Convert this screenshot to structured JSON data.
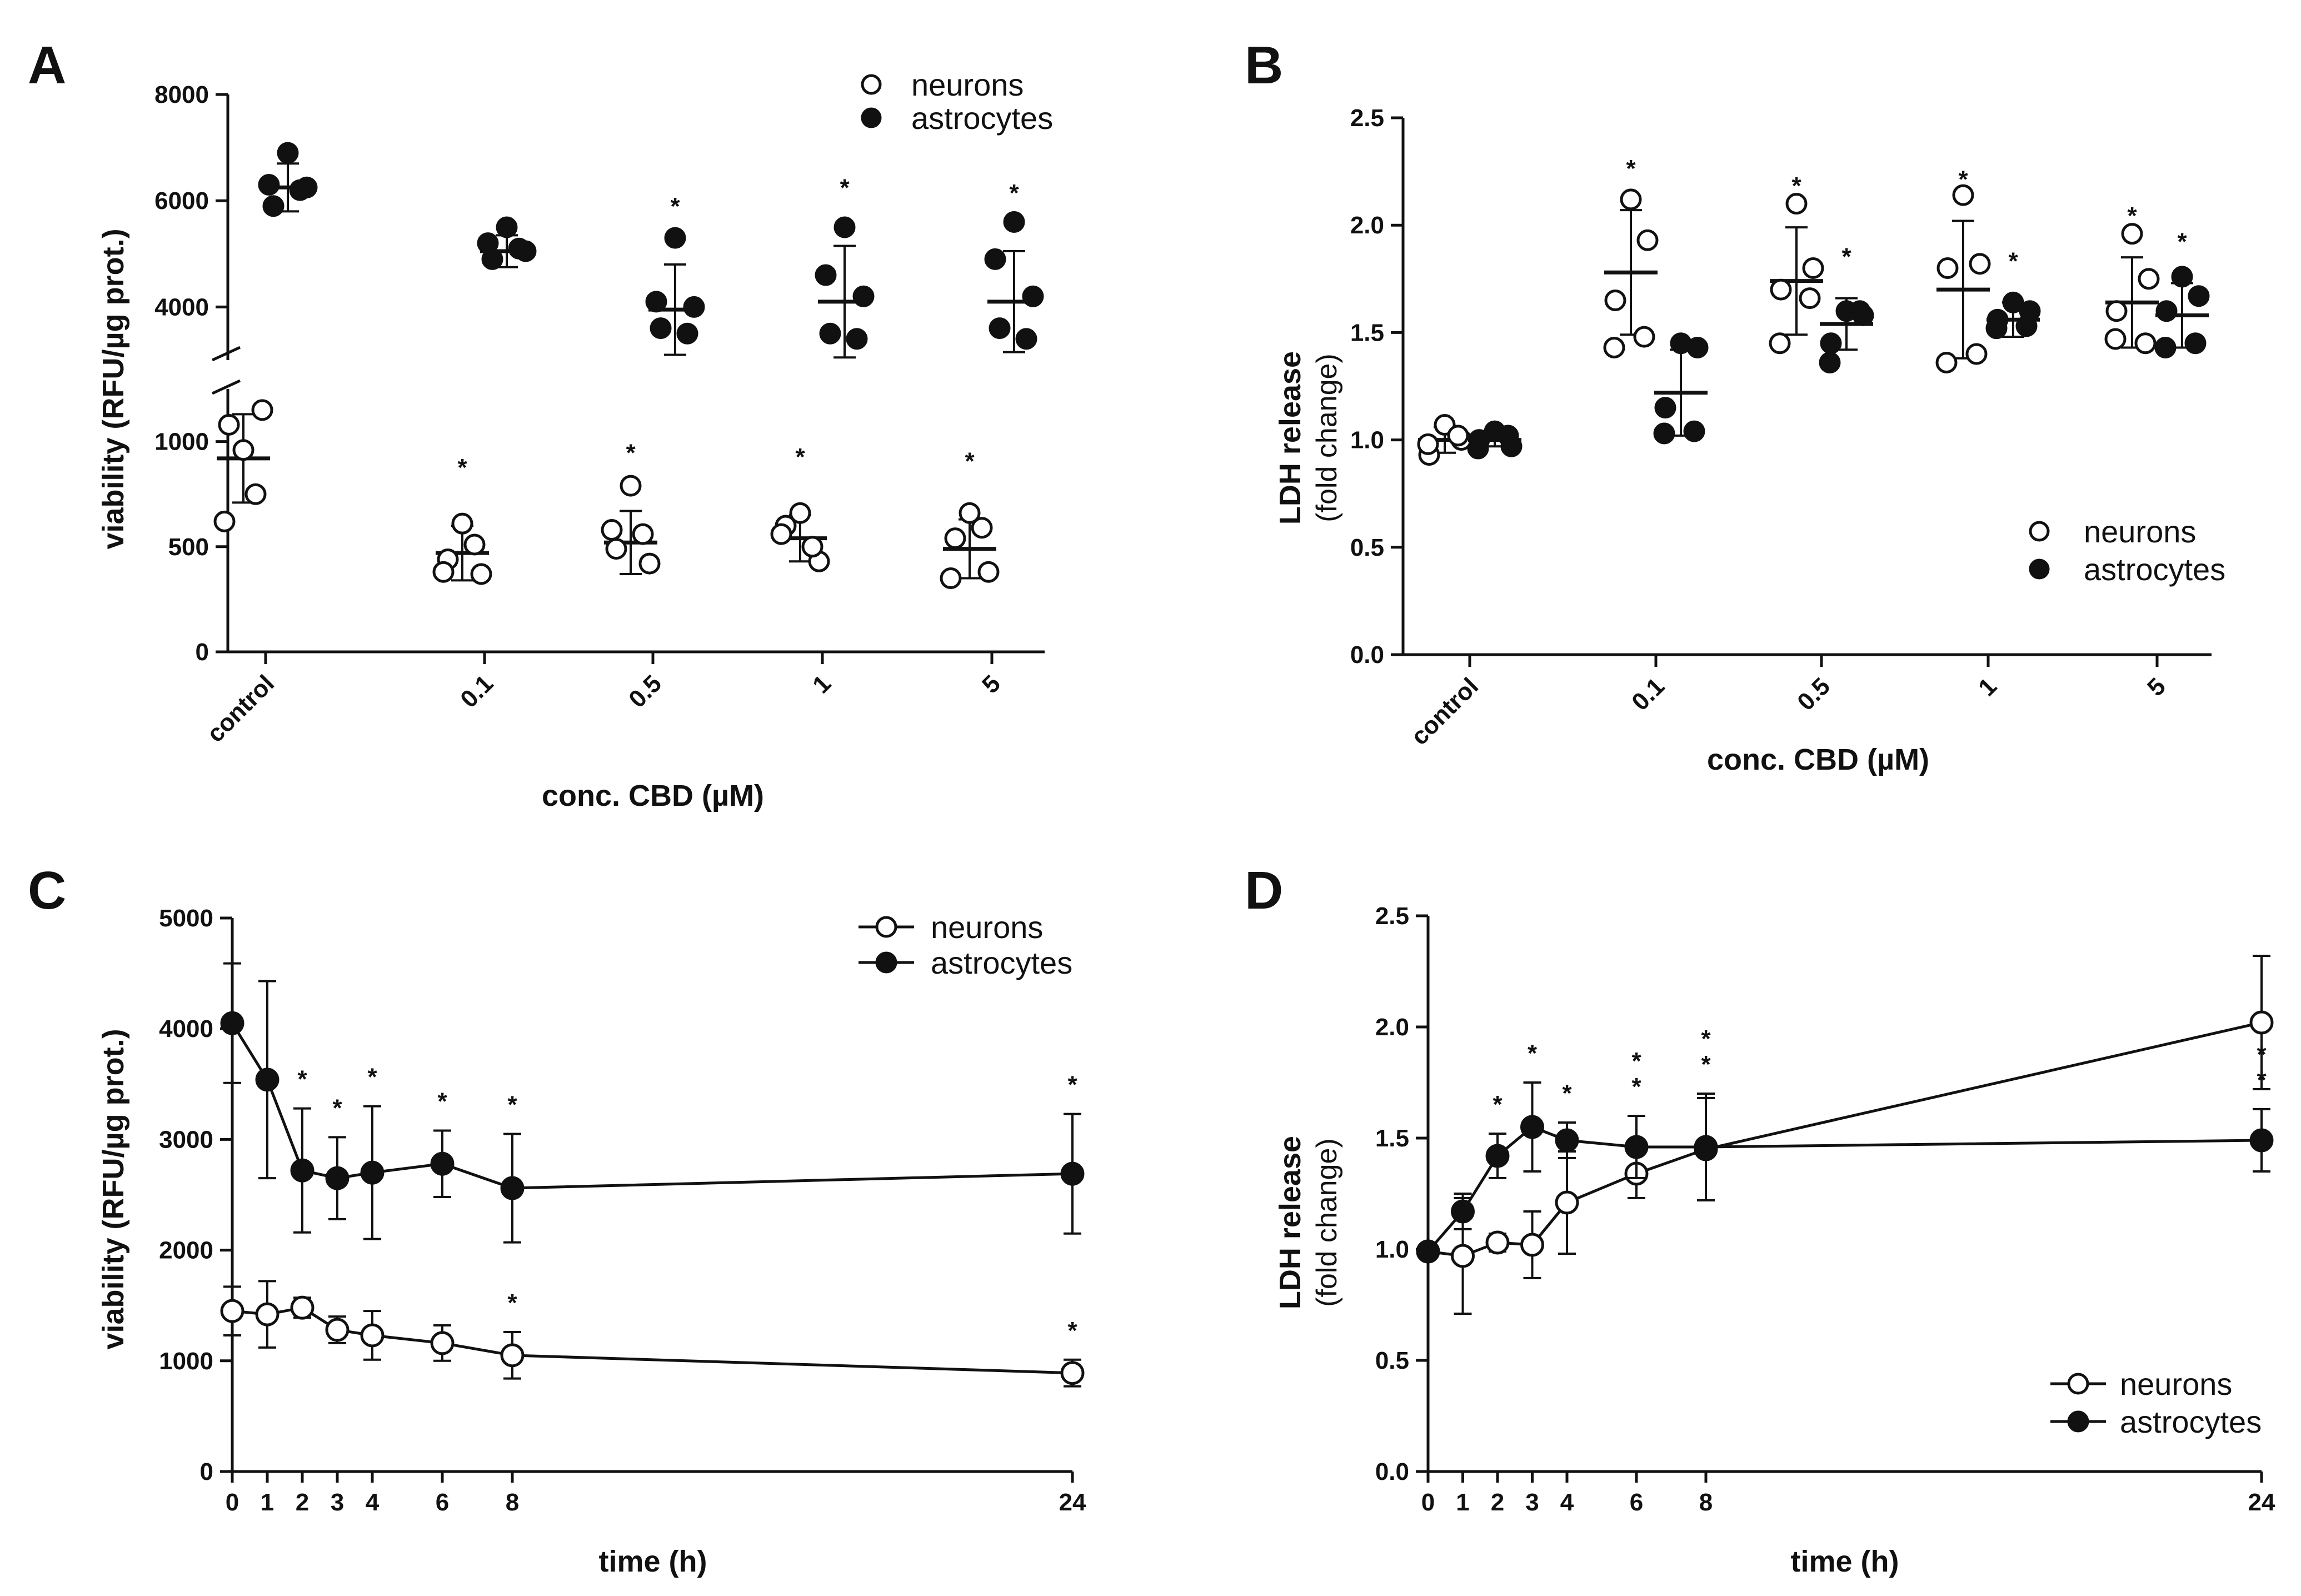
{
  "figure": {
    "background": "#ffffff",
    "ink": "#111111",
    "marker_open_fill": "#ffffff",
    "marker_closed_fill": "#111111"
  },
  "chart_data": [
    {
      "id": "A",
      "type": "scatter",
      "panel_label": "A",
      "ylabel": "viability (RFU/µg prot.)",
      "xlabel": "conc. CBD (µM)",
      "categories": [
        "control",
        "0.1",
        "0.5",
        "1",
        "5"
      ],
      "yticks_lower": [
        "0",
        "500",
        "1000"
      ],
      "yticks_upper": [
        "4000",
        "6000",
        "8000"
      ],
      "ylim_lower": [
        0,
        1250
      ],
      "ylim_upper": [
        3000,
        8000
      ],
      "legend": [
        "neurons",
        "astrocytes"
      ],
      "series": [
        {
          "name": "neurons",
          "marker": "open",
          "points": [
            [
              960,
              1150,
              1080,
              750,
              620
            ],
            [
              610,
              370,
              440,
              510,
              380
            ],
            [
              790,
              420,
              490,
              560,
              580
            ],
            [
              660,
              430,
              600,
              500,
              560
            ],
            [
              660,
              380,
              540,
              590,
              350
            ]
          ],
          "mean": [
            920,
            470,
            520,
            540,
            490
          ],
          "sd": [
            210,
            130,
            150,
            110,
            140
          ],
          "significant": [
            false,
            true,
            true,
            true,
            true
          ]
        },
        {
          "name": "astrocytes",
          "marker": "closed",
          "points": [
            [
              6900,
              6250,
              5900,
              6200,
              6300
            ],
            [
              5500,
              5050,
              4900,
              5100,
              5200
            ],
            [
              5300,
              4000,
              3600,
              3500,
              4100
            ],
            [
              5500,
              4200,
              3500,
              3400,
              4600
            ],
            [
              5600,
              4200,
              3600,
              3400,
              4900
            ]
          ],
          "mean": [
            6250,
            5050,
            3950,
            4100,
            4100
          ],
          "sd": [
            450,
            300,
            850,
            1050,
            950
          ],
          "significant": [
            false,
            false,
            true,
            true,
            true
          ]
        }
      ]
    },
    {
      "id": "B",
      "type": "scatter",
      "panel_label": "B",
      "ylabel": "LDH release",
      "ylabel_sub": "(fold change)",
      "xlabel": "conc. CBD (µM)",
      "categories": [
        "control",
        "0.1",
        "0.5",
        "1",
        "5"
      ],
      "yticks": [
        "0.0",
        "0.5",
        "1.0",
        "1.5",
        "2.0",
        "2.5"
      ],
      "ylim": [
        0,
        2.5
      ],
      "legend": [
        "neurons",
        "astrocytes"
      ],
      "series": [
        {
          "name": "neurons",
          "marker": "open",
          "points": [
            [
              1.07,
              1.0,
              0.93,
              1.02,
              0.98
            ],
            [
              2.12,
              1.93,
              1.65,
              1.48,
              1.43
            ],
            [
              2.1,
              1.8,
              1.7,
              1.66,
              1.45
            ],
            [
              2.14,
              1.82,
              1.8,
              1.4,
              1.36
            ],
            [
              1.96,
              1.75,
              1.6,
              1.45,
              1.47
            ]
          ],
          "mean": [
            1.0,
            1.78,
            1.74,
            1.7,
            1.64
          ],
          "sd": [
            0.06,
            0.29,
            0.25,
            0.32,
            0.21
          ],
          "significant": [
            false,
            true,
            true,
            true,
            true
          ]
        },
        {
          "name": "astrocytes",
          "marker": "closed",
          "points": [
            [
              1.04,
              0.97,
              1.0,
              1.02,
              0.96
            ],
            [
              1.45,
              1.43,
              1.15,
              1.04,
              1.03
            ],
            [
              1.6,
              1.58,
              1.45,
              1.6,
              1.36
            ],
            [
              1.64,
              1.6,
              1.56,
              1.53,
              1.52
            ],
            [
              1.76,
              1.67,
              1.6,
              1.45,
              1.43
            ]
          ],
          "mean": [
            1.0,
            1.22,
            1.54,
            1.56,
            1.58
          ],
          "sd": [
            0.03,
            0.2,
            0.12,
            0.08,
            0.15
          ],
          "significant": [
            false,
            false,
            true,
            true,
            true
          ]
        }
      ]
    },
    {
      "id": "C",
      "type": "line",
      "panel_label": "C",
      "ylabel": "viability (RFU/µg prot.)",
      "xlabel": "time (h)",
      "x": [
        0,
        1,
        2,
        3,
        4,
        6,
        8,
        24
      ],
      "xticks": [
        "0",
        "1",
        "2",
        "3",
        "4",
        "6",
        "8",
        "24"
      ],
      "yticks": [
        "0",
        "1000",
        "2000",
        "3000",
        "4000",
        "5000"
      ],
      "ylim": [
        0,
        5000
      ],
      "xlim": [
        0,
        24
      ],
      "legend": [
        "neurons",
        "astrocytes"
      ],
      "series": [
        {
          "name": "neurons",
          "marker": "open",
          "values": [
            1450,
            1420,
            1480,
            1280,
            1230,
            1160,
            1050,
            890
          ],
          "err": [
            220,
            300,
            90,
            120,
            220,
            160,
            210,
            120
          ],
          "stars": [
            0,
            0,
            0,
            0,
            0,
            0,
            1,
            1
          ]
        },
        {
          "name": "astrocytes",
          "marker": "closed",
          "values": [
            4050,
            3540,
            2720,
            2650,
            2700,
            2780,
            2560,
            2690
          ],
          "err": [
            540,
            890,
            560,
            370,
            600,
            300,
            490,
            540
          ],
          "stars": [
            0,
            0,
            1,
            1,
            1,
            1,
            1,
            1
          ]
        }
      ]
    },
    {
      "id": "D",
      "type": "line",
      "panel_label": "D",
      "ylabel": "LDH release",
      "ylabel_sub": "(fold change)",
      "xlabel": "time (h)",
      "x": [
        0,
        1,
        2,
        3,
        4,
        6,
        8,
        24
      ],
      "xticks": [
        "0",
        "1",
        "2",
        "3",
        "4",
        "6",
        "8",
        "24"
      ],
      "yticks": [
        "0.0",
        "0.5",
        "1.0",
        "1.5",
        "2.0",
        "2.5"
      ],
      "ylim": [
        0,
        2.5
      ],
      "xlim": [
        0,
        24
      ],
      "legend": [
        "neurons",
        "astrocytes"
      ],
      "series": [
        {
          "name": "neurons",
          "marker": "open",
          "values": [
            0.99,
            0.97,
            1.03,
            1.02,
            1.21,
            1.34,
            1.45,
            2.02
          ],
          "err": [
            0.03,
            0.26,
            0.04,
            0.15,
            0.23,
            0.11,
            0.23,
            0.3
          ],
          "stars": [
            0,
            0,
            0,
            0,
            0,
            0,
            0,
            0
          ]
        },
        {
          "name": "astrocytes",
          "marker": "closed",
          "values": [
            0.99,
            1.17,
            1.42,
            1.55,
            1.49,
            1.46,
            1.46,
            1.49
          ],
          "err": [
            0.03,
            0.08,
            0.1,
            0.2,
            0.08,
            0.14,
            0.24,
            0.14
          ],
          "stars": [
            0,
            0,
            1,
            1,
            1,
            2,
            2,
            2
          ]
        }
      ]
    }
  ]
}
